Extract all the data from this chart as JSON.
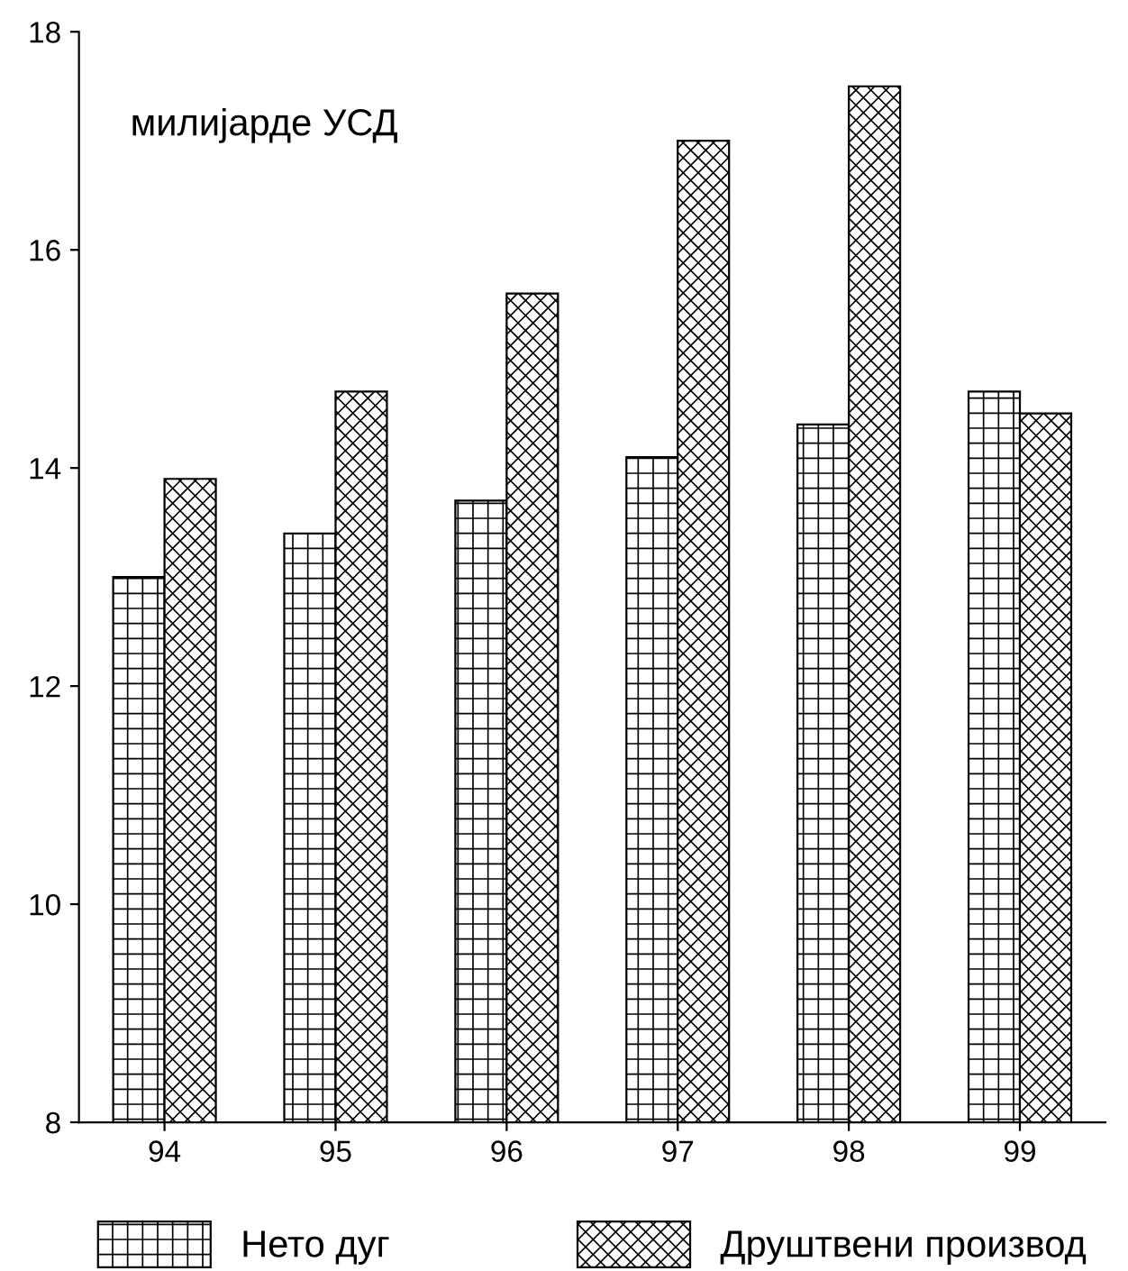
{
  "chart_data": {
    "type": "bar",
    "categories": [
      "94",
      "95",
      "96",
      "97",
      "98",
      "99"
    ],
    "series": [
      {
        "name": "Нето дуг",
        "color": "#000000",
        "values": [
          13.0,
          13.4,
          13.7,
          14.1,
          14.4,
          14.7
        ]
      },
      {
        "name": "Друштвени производ",
        "color": "#000000",
        "values": [
          13.9,
          14.7,
          15.6,
          17.0,
          17.5,
          14.5
        ]
      }
    ],
    "annotations": [
      "милијарде УСД"
    ],
    "ylim": [
      8,
      18
    ],
    "yticks": [
      8,
      10,
      12,
      14,
      16,
      18
    ],
    "grid": false,
    "legend": "bottom"
  }
}
